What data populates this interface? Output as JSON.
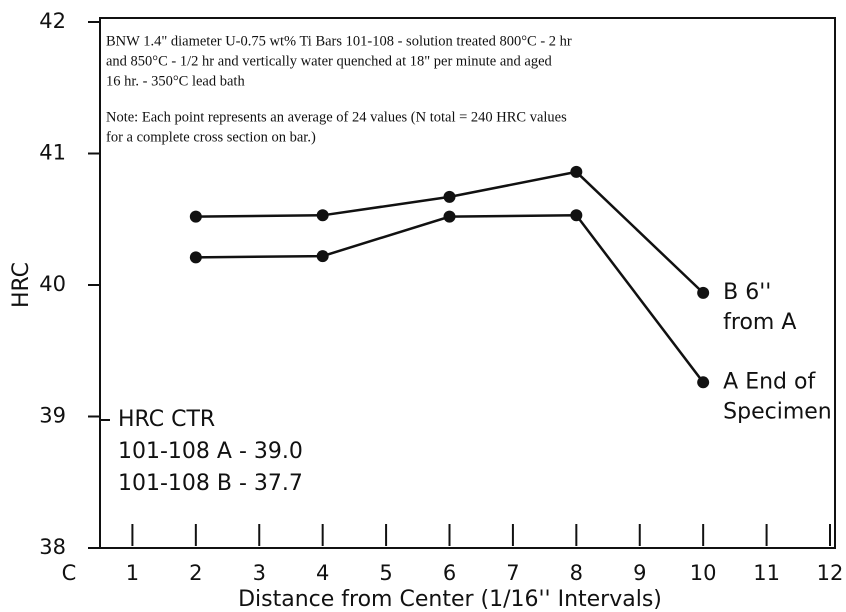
{
  "chart_data": {
    "type": "line",
    "x_label": "Distance from Center (1/16'' Intervals)",
    "y_label": "HRC",
    "xlim": [
      0,
      12
    ],
    "xticks": [
      {
        "value": 0,
        "label": "C"
      },
      1,
      2,
      3,
      4,
      5,
      6,
      7,
      8,
      9,
      10,
      11,
      12
    ],
    "ylim": [
      38,
      42
    ],
    "yticks": [
      38,
      39,
      40,
      41,
      42
    ],
    "x": [
      2,
      4,
      6,
      8,
      10
    ],
    "series": [
      {
        "name_lines": [
          "B 6''",
          "from A"
        ],
        "color": "#111111",
        "values": [
          40.52,
          40.53,
          40.67,
          40.86,
          39.94
        ]
      },
      {
        "name_lines": [
          "A End of",
          "Specimen"
        ],
        "color": "#111111",
        "values": [
          40.21,
          40.22,
          40.52,
          40.53,
          39.26
        ]
      }
    ],
    "note_lines": [
      "BNW 1.4\" diameter U-0.75 wt% Ti Bars 101-108 - solution treated 800°C - 2 hr",
      "and 850°C - 1/2 hr and vertically water quenched at 18\" per minute and aged",
      "16 hr. - 350°C lead bath",
      "Note:  Each point represents an average of 24 values (N total = 240 HRC values",
      "for a complete cross section on bar.)"
    ],
    "inset_lines": [
      "HRC    CTR",
      "101-108 A  - 39.0",
      "101-108 B  - 37.7"
    ]
  }
}
